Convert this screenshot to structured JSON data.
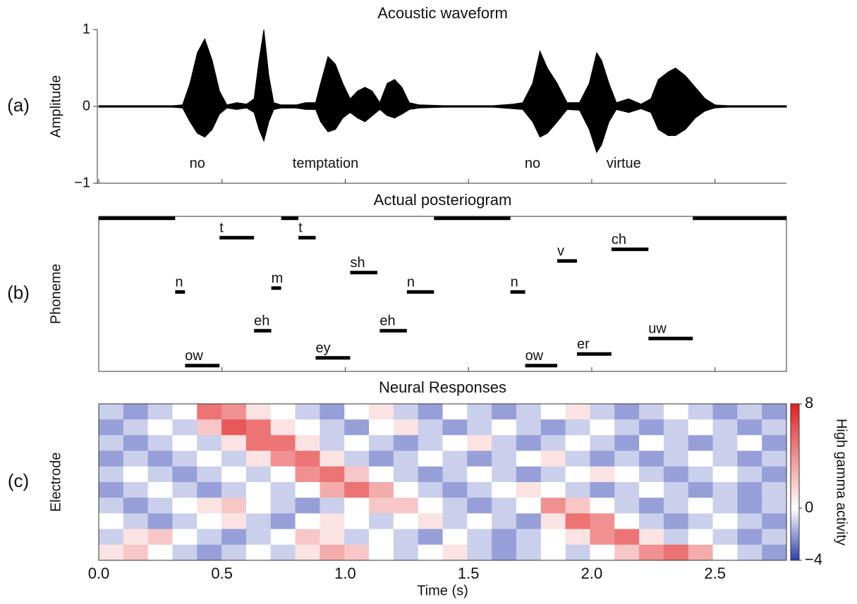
{
  "chart_data": [
    {
      "type": "area",
      "panel_label": "(a)",
      "title": "Acoustic waveform",
      "ylabel": "Amplitude",
      "xlim": [
        0,
        2.79
      ],
      "ylim": [
        -1,
        1
      ],
      "yticks": [
        {
          "value": -1,
          "label": "−1"
        },
        0,
        1
      ],
      "x": [
        0,
        0.3,
        0.34,
        0.37,
        0.4,
        0.43,
        0.46,
        0.49,
        0.52,
        0.56,
        0.6,
        0.63,
        0.65,
        0.67,
        0.69,
        0.71,
        0.74,
        0.8,
        0.84,
        0.88,
        0.9,
        0.93,
        0.96,
        0.99,
        1.02,
        1.05,
        1.08,
        1.11,
        1.14,
        1.17,
        1.2,
        1.23,
        1.26,
        1.3,
        1.4,
        1.6,
        1.68,
        1.72,
        1.76,
        1.79,
        1.82,
        1.86,
        1.9,
        1.95,
        1.99,
        2.02,
        2.04,
        2.07,
        2.1,
        2.15,
        2.2,
        2.24,
        2.27,
        2.31,
        2.34,
        2.38,
        2.42,
        2.46,
        2.5,
        2.55,
        2.79
      ],
      "series": [
        {
          "color": "#000000",
          "values": [
            0.01,
            0.01,
            0.02,
            0.3,
            0.7,
            0.88,
            0.6,
            0.2,
            0.02,
            0.05,
            0.03,
            0.1,
            0.6,
            1.0,
            0.4,
            0.05,
            0.02,
            0.02,
            0.05,
            0.05,
            0.3,
            0.65,
            0.55,
            0.3,
            0.1,
            0.2,
            0.25,
            0.2,
            0.05,
            0.3,
            0.35,
            0.25,
            0.05,
            0.02,
            0.01,
            0.01,
            0.03,
            0.05,
            0.3,
            0.72,
            0.5,
            0.3,
            0.05,
            0.05,
            0.3,
            0.7,
            0.6,
            0.3,
            0.05,
            0.1,
            0.03,
            0.1,
            0.35,
            0.45,
            0.5,
            0.4,
            0.25,
            0.1,
            0.02,
            0.01,
            0.01
          ]
        },
        {
          "color": "#000000",
          "values": [
            -0.01,
            -0.01,
            -0.02,
            -0.2,
            -0.35,
            -0.4,
            -0.3,
            -0.1,
            -0.02,
            -0.04,
            -0.02,
            -0.08,
            -0.3,
            -0.45,
            -0.2,
            -0.04,
            -0.02,
            -0.02,
            -0.04,
            -0.04,
            -0.2,
            -0.33,
            -0.3,
            -0.15,
            -0.08,
            -0.15,
            -0.2,
            -0.12,
            -0.04,
            -0.12,
            -0.15,
            -0.1,
            -0.04,
            -0.02,
            -0.01,
            -0.01,
            -0.03,
            -0.04,
            -0.2,
            -0.4,
            -0.35,
            -0.2,
            -0.04,
            -0.05,
            -0.3,
            -0.6,
            -0.5,
            -0.2,
            -0.04,
            -0.08,
            -0.03,
            -0.08,
            -0.3,
            -0.38,
            -0.38,
            -0.3,
            -0.15,
            -0.06,
            -0.02,
            -0.01,
            -0.01
          ]
        }
      ],
      "annotations": [
        {
          "text": "no",
          "x": 0.4,
          "y": -0.75
        },
        {
          "text": "temptation",
          "x": 0.92,
          "y": -0.75
        },
        {
          "text": "no",
          "x": 1.76,
          "y": -0.75
        },
        {
          "text": "virtue",
          "x": 2.13,
          "y": -0.75
        }
      ]
    },
    {
      "type": "gantt",
      "panel_label": "(b)",
      "title": "Actual posteriogram",
      "ylabel": "Phoneme",
      "xlim": [
        0,
        2.79
      ],
      "ylim": [
        0,
        40
      ],
      "color": "#000000",
      "segments": [
        {
          "start": 0,
          "end": 0.31,
          "row": 0
        },
        {
          "start": 0.74,
          "end": 0.81,
          "row": 0
        },
        {
          "start": 1.36,
          "end": 1.67,
          "row": 0
        },
        {
          "start": 2.41,
          "end": 2.79,
          "row": 0
        },
        {
          "label": "n",
          "start": 0.31,
          "end": 0.35,
          "row": 19
        },
        {
          "label": "ow",
          "start": 0.35,
          "end": 0.49,
          "row": 38
        },
        {
          "label": "t",
          "start": 0.49,
          "end": 0.63,
          "row": 5
        },
        {
          "label": "eh",
          "start": 0.63,
          "end": 0.7,
          "row": 29
        },
        {
          "label": "m",
          "start": 0.7,
          "end": 0.74,
          "row": 18
        },
        {
          "label": "t",
          "start": 0.81,
          "end": 0.88,
          "row": 5
        },
        {
          "label": "ey",
          "start": 0.88,
          "end": 1.02,
          "row": 36
        },
        {
          "label": "sh",
          "start": 1.02,
          "end": 1.13,
          "row": 14
        },
        {
          "label": "eh",
          "start": 1.14,
          "end": 1.25,
          "row": 29
        },
        {
          "label": "n",
          "start": 1.25,
          "end": 1.36,
          "row": 19
        },
        {
          "label": "n",
          "start": 1.67,
          "end": 1.73,
          "row": 19
        },
        {
          "label": "ow",
          "start": 1.73,
          "end": 1.86,
          "row": 38
        },
        {
          "label": "v",
          "start": 1.86,
          "end": 1.94,
          "row": 11
        },
        {
          "label": "er",
          "start": 1.94,
          "end": 2.08,
          "row": 35
        },
        {
          "label": "ch",
          "start": 2.08,
          "end": 2.23,
          "row": 8
        },
        {
          "label": "uw",
          "start": 2.23,
          "end": 2.41,
          "row": 31
        }
      ]
    },
    {
      "type": "heatmap",
      "panel_label": "(c)",
      "title": "Neural Responses",
      "ylabel": "Electrode",
      "xlabel": "Time (s)",
      "xlim": [
        0,
        2.79
      ],
      "xticks": [
        {
          "value": 0,
          "label": "0.0"
        },
        0.5,
        {
          "value": 1,
          "label": "1.0"
        },
        1.5,
        {
          "value": 2,
          "label": "2.0"
        },
        2.5
      ],
      "zlim": [
        -4,
        8
      ],
      "zticks": [
        {
          "value": -4,
          "label": "−4"
        },
        0,
        8
      ],
      "zlabel": "High gamma activity",
      "colors": [
        "#2c3fb0",
        "#ffffff",
        "#e02020"
      ],
      "z": [
        [
          -1,
          -2,
          -1,
          0,
          5,
          4,
          1,
          0,
          -1,
          -2,
          0,
          1,
          -1,
          -2,
          0,
          -1,
          -2,
          -1,
          0,
          1,
          -1,
          -2,
          -1,
          0,
          -1,
          -2,
          -1,
          -2
        ],
        [
          -2,
          -1,
          0,
          -1,
          2,
          6,
          5,
          1,
          0,
          -1,
          -2,
          0,
          1,
          -1,
          -2,
          -1,
          0,
          -1,
          -2,
          -1,
          0,
          -1,
          -2,
          -1,
          0,
          -1,
          -2,
          -1
        ],
        [
          -1,
          -2,
          -1,
          0,
          -1,
          1,
          5,
          5,
          1,
          -1,
          0,
          -1,
          -2,
          -1,
          0,
          1,
          -1,
          -2,
          -1,
          0,
          -1,
          -2,
          0,
          -1,
          -2,
          -1,
          0,
          -2
        ],
        [
          -2,
          -1,
          -2,
          -1,
          0,
          -1,
          1,
          4,
          5,
          1,
          -1,
          -2,
          -1,
          0,
          -1,
          -2,
          -1,
          0,
          1,
          -1,
          -2,
          -1,
          -2,
          -1,
          0,
          -1,
          -2,
          -1
        ],
        [
          -1,
          0,
          -1,
          -2,
          -1,
          0,
          -1,
          0,
          4,
          5,
          2,
          0,
          -1,
          -2,
          -1,
          0,
          -1,
          -2,
          -1,
          0,
          1,
          0,
          -1,
          -2,
          -1,
          0,
          -1,
          -2
        ],
        [
          -2,
          -1,
          0,
          -1,
          -2,
          -1,
          0,
          -1,
          0,
          3,
          5,
          3,
          0,
          -1,
          -2,
          -1,
          0,
          1,
          0,
          -1,
          -2,
          -1,
          0,
          -1,
          -2,
          -1,
          -2,
          -1
        ],
        [
          -1,
          -2,
          -1,
          0,
          1,
          2,
          0,
          -1,
          -2,
          -1,
          0,
          2,
          2,
          0,
          -1,
          -2,
          -1,
          0,
          4,
          2,
          0,
          -1,
          -2,
          -1,
          0,
          -1,
          -2,
          -1
        ],
        [
          0,
          -1,
          -2,
          -1,
          0,
          1,
          -1,
          -2,
          0,
          1,
          0,
          -1,
          0,
          1,
          -1,
          0,
          -1,
          -2,
          1,
          5,
          4,
          0,
          -1,
          -2,
          -1,
          0,
          -1,
          -2
        ],
        [
          -1,
          1,
          2,
          0,
          -1,
          -2,
          -1,
          0,
          2,
          1,
          -1,
          0,
          -1,
          -2,
          0,
          -1,
          -2,
          -1,
          0,
          1,
          4,
          5,
          1,
          -1,
          0,
          -1,
          -2,
          -1
        ],
        [
          1,
          2,
          0,
          -1,
          -2,
          -1,
          0,
          -1,
          1,
          3,
          2,
          0,
          -1,
          0,
          1,
          -1,
          -2,
          -1,
          0,
          -1,
          0,
          2,
          4,
          5,
          3,
          0,
          -1,
          -2
        ]
      ]
    }
  ]
}
